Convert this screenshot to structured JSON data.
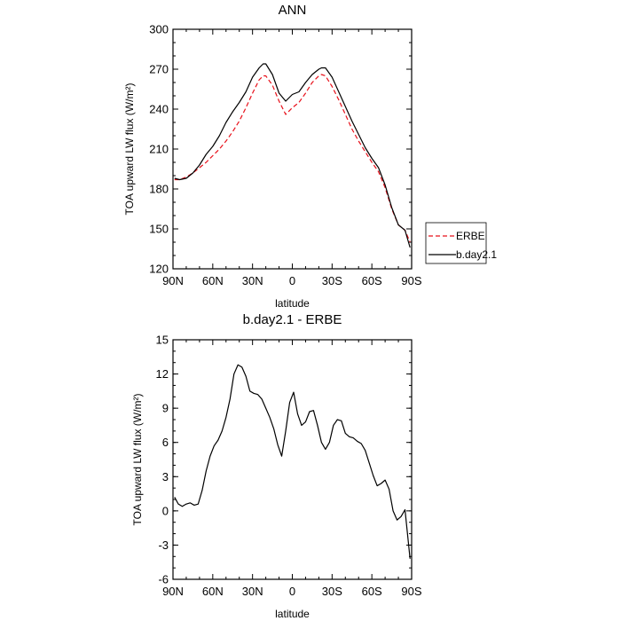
{
  "chart_data": [
    {
      "type": "line",
      "title": "ANN",
      "xlabel": "latitude",
      "ylabel": "TOA upward LW flux (W/m²)",
      "xlim": [
        90,
        -90
      ],
      "ylim": [
        120,
        300
      ],
      "x_ticks": [
        90,
        60,
        30,
        0,
        -30,
        -60,
        -90
      ],
      "x_tick_labels": [
        "90N",
        "60N",
        "30N",
        "0",
        "30S",
        "60S",
        "90S"
      ],
      "y_ticks": [
        120,
        150,
        180,
        210,
        240,
        270,
        300
      ],
      "y_tick_labels": [
        "120",
        "150",
        "180",
        "210",
        "240",
        "270",
        "300"
      ],
      "legend": "outside-right",
      "series": [
        {
          "name": "ERBE",
          "color": "#e8101a",
          "dash": "dashed",
          "x": [
            88.8,
            85,
            80,
            75,
            70,
            65,
            60,
            55,
            50,
            45,
            40,
            35,
            30,
            25,
            22,
            20,
            15,
            10,
            5,
            0,
            -5,
            -10,
            -15,
            -20,
            -22,
            -25,
            -30,
            -35,
            -40,
            -45,
            -50,
            -55,
            -60,
            -65,
            -70,
            -75,
            -80,
            -85,
            -88.8
          ],
          "y": [
            187,
            187,
            189,
            192,
            196,
            200,
            205,
            210,
            216,
            223,
            231,
            241,
            252,
            262,
            265,
            265,
            258,
            246,
            236,
            241,
            245,
            252,
            260,
            265,
            266,
            265,
            257,
            247,
            236,
            225,
            216,
            208,
            200,
            193,
            181,
            165,
            153,
            149,
            140
          ]
        },
        {
          "name": "b.day2.1",
          "color": "#000000",
          "dash": "solid",
          "x": [
            88.8,
            85,
            80,
            75,
            70,
            65,
            60,
            55,
            50,
            45,
            40,
            35,
            30,
            25,
            22,
            20,
            15,
            10,
            5,
            0,
            -5,
            -10,
            -15,
            -20,
            -22,
            -25,
            -30,
            -35,
            -40,
            -45,
            -50,
            -55,
            -60,
            -65,
            -70,
            -75,
            -80,
            -85,
            -88.8
          ],
          "y": [
            188,
            187,
            188,
            192,
            198,
            206,
            212,
            220,
            230,
            238,
            245,
            253,
            264,
            271,
            274,
            274,
            266,
            252,
            246,
            251,
            253,
            260,
            266,
            270,
            271,
            271,
            264,
            253,
            242,
            231,
            221,
            211,
            203,
            196,
            183,
            166,
            153,
            149,
            136
          ]
        }
      ]
    },
    {
      "type": "line",
      "title": "b.day2.1 - ERBE",
      "xlabel": "latitude",
      "ylabel": "TOA upward LW flux (W/m²)",
      "xlim": [
        90,
        -90
      ],
      "ylim": [
        -6,
        15
      ],
      "x_ticks": [
        90,
        60,
        30,
        0,
        -30,
        -60,
        -90
      ],
      "x_tick_labels": [
        "90N",
        "60N",
        "30N",
        "0",
        "30S",
        "60S",
        "90S"
      ],
      "y_ticks": [
        -6,
        -3,
        0,
        3,
        6,
        9,
        12,
        15
      ],
      "y_tick_labels": [
        "-6",
        "-3",
        "0",
        "3",
        "6",
        "9",
        "12",
        "15"
      ],
      "series": [
        {
          "name": "b.day2.1 - ERBE",
          "color": "#000000",
          "dash": "solid",
          "x": [
            88.8,
            86,
            83,
            80,
            77,
            74,
            71,
            68,
            65,
            62,
            59,
            56,
            53,
            50,
            47,
            44,
            41,
            38,
            35,
            32,
            29,
            26,
            23,
            20,
            17,
            14,
            11,
            8,
            5,
            2,
            -1,
            -4,
            -7,
            -10,
            -13,
            -16,
            -19,
            -22,
            -25,
            -28,
            -31,
            -34,
            -37,
            -40,
            -43,
            -46,
            -49,
            -52,
            -55,
            -58,
            -61,
            -64,
            -67,
            -70,
            -73,
            -76,
            -79,
            -82,
            -85,
            -88.8
          ],
          "y": [
            1.2,
            0.6,
            0.4,
            0.6,
            0.7,
            0.5,
            0.6,
            1.8,
            3.5,
            4.8,
            5.7,
            6.2,
            7,
            8.2,
            9.8,
            12,
            12.8,
            12.6,
            11.8,
            10.5,
            10.3,
            10.2,
            9.8,
            9,
            8.2,
            7.2,
            5.8,
            4.8,
            7,
            9.5,
            10.4,
            8.5,
            7.5,
            7.8,
            8.7,
            8.8,
            7.5,
            6,
            5.4,
            6,
            7.5,
            8,
            7.9,
            6.8,
            6.5,
            6.4,
            6.1,
            5.9,
            5.3,
            4.2,
            3.1,
            2.2,
            2.4,
            2.7,
            1.9,
            0,
            -0.8,
            -0.5,
            0.1,
            -4.2
          ]
        }
      ]
    }
  ]
}
